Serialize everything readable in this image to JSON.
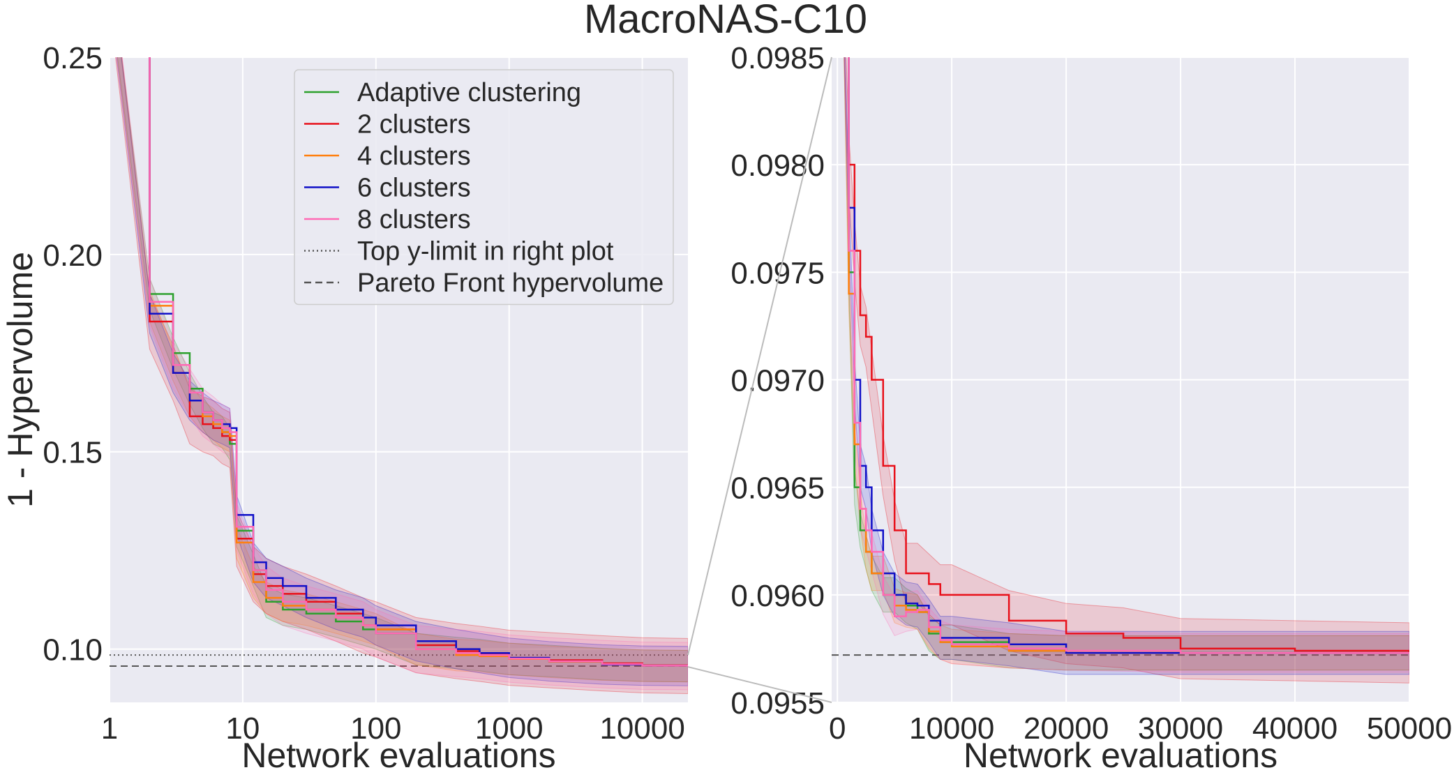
{
  "figure": {
    "title": "MacroNAS-C10",
    "colors": {
      "axes_bg": "#eaeaf2",
      "grid": "#ffffff",
      "text": "#262626",
      "reference": "#555555",
      "zoom_connector": "#bbbbbb"
    }
  },
  "chart_data": [
    {
      "type": "line",
      "panel": "left",
      "xlabel": "Network evaluations",
      "ylabel": "1 - Hypervolume",
      "xscale": "log",
      "xlim": [
        1,
        22000
      ],
      "ylim": [
        0.0865,
        0.25
      ],
      "xticks": [
        1,
        10,
        100,
        1000,
        10000
      ],
      "xtick_labels": [
        "1",
        "10",
        "100",
        "1000",
        "10000"
      ],
      "yticks": [
        0.1,
        0.15,
        0.2,
        0.25
      ],
      "ytick_labels": [
        "0.10",
        "0.15",
        "0.20",
        "0.25"
      ],
      "grid": true,
      "legend": {
        "position": "top-right",
        "entries": [
          {
            "label": "Adaptive clustering",
            "color": "#2ca02c",
            "style": "solid"
          },
          {
            "label": "2 clusters",
            "color": "#e8101a",
            "style": "solid"
          },
          {
            "label": "4 clusters",
            "color": "#ff7f0e",
            "style": "solid"
          },
          {
            "label": "6 clusters",
            "color": "#1010c8",
            "style": "solid"
          },
          {
            "label": "8 clusters",
            "color": "#ff69b4",
            "style": "solid"
          },
          {
            "label": "Top y-limit in right plot",
            "color": "#555555",
            "style": "dotted"
          },
          {
            "label": "Pareto Front hypervolume",
            "color": "#555555",
            "style": "dashed"
          }
        ]
      },
      "reference_lines": [
        {
          "name": "Top y-limit in right plot",
          "y": 0.0985,
          "style": "dotted"
        },
        {
          "name": "Pareto Front hypervolume",
          "y": 0.0957,
          "style": "dashed"
        }
      ],
      "series": [
        {
          "name": "Adaptive clustering",
          "color": "#2ca02c",
          "x": [
            1,
            2,
            3,
            4,
            5,
            6,
            7,
            8,
            9,
            12,
            15,
            20,
            30,
            50,
            80,
            100,
            200,
            400,
            600,
            1000,
            2000,
            5000,
            10000,
            22000
          ],
          "y": [
            0.27,
            0.19,
            0.175,
            0.166,
            0.16,
            0.156,
            0.155,
            0.152,
            0.13,
            0.12,
            0.112,
            0.11,
            0.109,
            0.107,
            0.105,
            0.104,
            0.1,
            0.099,
            0.0985,
            0.0975,
            0.097,
            0.0962,
            0.0958,
            0.0957
          ],
          "band": 0.004
        },
        {
          "name": "2 clusters",
          "color": "#e8101a",
          "x": [
            1,
            2,
            3,
            4,
            5,
            6,
            7,
            8,
            9,
            12,
            15,
            20,
            30,
            50,
            80,
            100,
            200,
            400,
            600,
            1000,
            2000,
            5000,
            10000,
            22000
          ],
          "y": [
            0.27,
            0.183,
            0.17,
            0.159,
            0.157,
            0.156,
            0.154,
            0.153,
            0.128,
            0.119,
            0.116,
            0.114,
            0.112,
            0.109,
            0.106,
            0.105,
            0.101,
            0.0995,
            0.0988,
            0.0978,
            0.0972,
            0.0964,
            0.0959,
            0.0957
          ],
          "band": 0.007
        },
        {
          "name": "4 clusters",
          "color": "#ff7f0e",
          "x": [
            1,
            2,
            3,
            4,
            5,
            6,
            7,
            8,
            9,
            12,
            15,
            20,
            30,
            50,
            80,
            100,
            200,
            400,
            600,
            1000,
            2000,
            5000,
            10000,
            22000
          ],
          "y": [
            0.27,
            0.187,
            0.172,
            0.163,
            0.159,
            0.157,
            0.155,
            0.154,
            0.127,
            0.117,
            0.113,
            0.111,
            0.11,
            0.108,
            0.106,
            0.105,
            0.1,
            0.0985,
            0.0982,
            0.0975,
            0.0968,
            0.0961,
            0.0958,
            0.0957
          ],
          "band": 0.004
        },
        {
          "name": "6 clusters",
          "color": "#1010c8",
          "x": [
            1,
            2,
            3,
            4,
            5,
            6,
            7,
            8,
            9,
            12,
            15,
            20,
            30,
            50,
            80,
            100,
            200,
            400,
            600,
            1000,
            2000,
            5000,
            10000,
            22000
          ],
          "y": [
            0.27,
            0.185,
            0.17,
            0.163,
            0.16,
            0.158,
            0.157,
            0.156,
            0.134,
            0.122,
            0.118,
            0.116,
            0.113,
            0.11,
            0.108,
            0.106,
            0.102,
            0.1,
            0.099,
            0.0978,
            0.0969,
            0.0961,
            0.0958,
            0.0957
          ],
          "band": 0.005
        },
        {
          "name": "8 clusters",
          "color": "#ff69b4",
          "x": [
            1,
            2,
            3,
            4,
            5,
            6,
            7,
            8,
            9,
            12,
            15,
            20,
            30,
            50,
            80,
            100,
            200,
            400,
            600,
            1000,
            2000,
            5000,
            10000,
            22000
          ],
          "y": [
            0.27,
            0.188,
            0.172,
            0.165,
            0.16,
            0.158,
            0.156,
            0.155,
            0.131,
            0.12,
            0.115,
            0.112,
            0.11,
            0.108,
            0.106,
            0.104,
            0.1,
            0.099,
            0.0985,
            0.0976,
            0.0969,
            0.0962,
            0.0958,
            0.0957
          ],
          "band": 0.006
        }
      ]
    },
    {
      "type": "line",
      "panel": "right",
      "xlabel": "Network evaluations",
      "ylabel": "",
      "xscale": "linear",
      "xlim": [
        -500,
        50000
      ],
      "ylim": [
        0.0955,
        0.0985
      ],
      "xticks": [
        0,
        10000,
        20000,
        30000,
        40000,
        50000
      ],
      "xtick_labels": [
        "0",
        "10000",
        "20000",
        "30000",
        "40000",
        "50000"
      ],
      "yticks": [
        0.0955,
        0.096,
        0.0965,
        0.097,
        0.0975,
        0.098,
        0.0985
      ],
      "ytick_labels": [
        "0.0955",
        "0.0960",
        "0.0965",
        "0.0970",
        "0.0975",
        "0.0980",
        "0.0985"
      ],
      "grid": true,
      "reference_lines": [
        {
          "name": "Pareto Front hypervolume",
          "y": 0.09572,
          "style": "dashed"
        }
      ],
      "series": [
        {
          "name": "Adaptive clustering",
          "color": "#2ca02c",
          "x": [
            500,
            1000,
            1500,
            2000,
            2500,
            3000,
            4000,
            5000,
            6000,
            7000,
            8000,
            9000,
            10000,
            15000,
            20000,
            30000,
            40000,
            50000
          ],
          "y": [
            0.0988,
            0.0975,
            0.0965,
            0.0963,
            0.0962,
            0.0961,
            0.096,
            0.096,
            0.09595,
            0.09592,
            0.09582,
            0.09578,
            0.09578,
            0.09574,
            0.09573,
            0.09573,
            0.09573,
            0.09573
          ],
          "band": 8e-05
        },
        {
          "name": "2 clusters",
          "color": "#e8101a",
          "x": [
            500,
            1000,
            1500,
            2000,
            2500,
            3000,
            4000,
            5000,
            6000,
            7000,
            8000,
            9000,
            10000,
            15000,
            20000,
            25000,
            30000,
            40000,
            50000
          ],
          "y": [
            0.0988,
            0.098,
            0.0976,
            0.0973,
            0.0972,
            0.097,
            0.0966,
            0.0963,
            0.0961,
            0.0961,
            0.09605,
            0.096,
            0.096,
            0.09588,
            0.09582,
            0.0958,
            0.09575,
            0.09574,
            0.09573
          ],
          "band": 0.00014
        },
        {
          "name": "4 clusters",
          "color": "#ff7f0e",
          "x": [
            500,
            1000,
            1500,
            2000,
            2500,
            3000,
            4000,
            5000,
            6000,
            7000,
            8000,
            9000,
            10000,
            15000,
            20000,
            30000,
            40000,
            50000
          ],
          "y": [
            0.0988,
            0.0974,
            0.0967,
            0.0964,
            0.0962,
            0.0961,
            0.0961,
            0.09595,
            0.09593,
            0.09592,
            0.09583,
            0.09578,
            0.09576,
            0.09574,
            0.09573,
            0.09573,
            0.09573,
            0.09573
          ],
          "band": 8e-05
        },
        {
          "name": "6 clusters",
          "color": "#1010c8",
          "x": [
            500,
            1000,
            1500,
            2000,
            2500,
            3000,
            4000,
            5000,
            6000,
            7000,
            8000,
            9000,
            10000,
            15000,
            20000,
            30000,
            40000,
            50000
          ],
          "y": [
            0.0988,
            0.0978,
            0.097,
            0.0966,
            0.0965,
            0.0963,
            0.0961,
            0.096,
            0.09596,
            0.09595,
            0.09588,
            0.0958,
            0.0958,
            0.09577,
            0.09573,
            0.09573,
            0.09573,
            0.09573
          ],
          "band": 0.0001
        },
        {
          "name": "8 clusters",
          "color": "#ff69b4",
          "x": [
            500,
            1000,
            1500,
            2000,
            2500,
            3000,
            4000,
            5000,
            6000,
            7000,
            8000,
            9000,
            10000,
            15000,
            20000,
            30000,
            40000,
            50000
          ],
          "y": [
            0.0988,
            0.0976,
            0.0968,
            0.0964,
            0.0963,
            0.0962,
            0.096,
            0.0959,
            0.09592,
            0.09593,
            0.09585,
            0.09579,
            0.09577,
            0.09575,
            0.09574,
            0.09573,
            0.09573,
            0.09573
          ],
          "band": 9e-05
        }
      ]
    }
  ]
}
